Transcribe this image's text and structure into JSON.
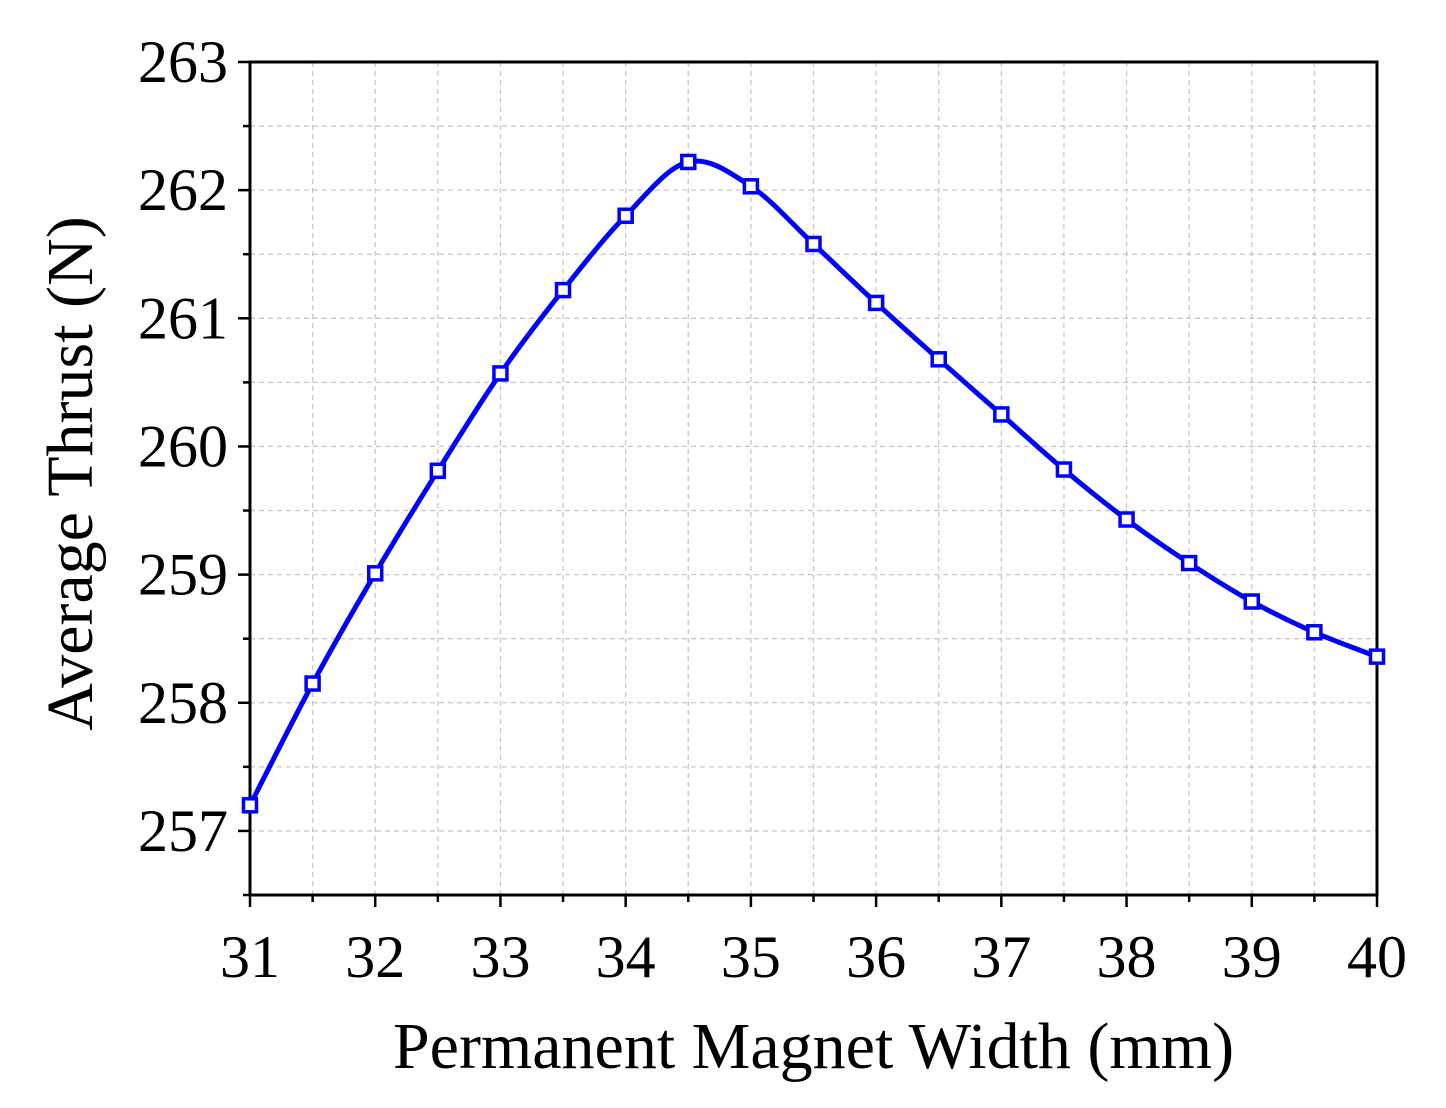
{
  "chart_data": {
    "type": "line",
    "title": "",
    "xlabel": "Permanent Magnet Width (mm)",
    "ylabel": "Average Thrust (N)",
    "xlim": [
      31,
      40
    ],
    "ylim": [
      256.5,
      263
    ],
    "x_ticks": [
      31,
      32,
      33,
      34,
      35,
      36,
      37,
      38,
      39,
      40
    ],
    "y_ticks": [
      257,
      258,
      259,
      260,
      261,
      262,
      263
    ],
    "grid": true,
    "legend": "none",
    "series": [
      {
        "color": "#0000ff",
        "marker": "open-square",
        "x": [
          31,
          31.5,
          32,
          32.5,
          33,
          33.5,
          34,
          34.5,
          35,
          35.5,
          36,
          36.5,
          37,
          37.5,
          38,
          38.5,
          39,
          39.5,
          40
        ],
        "y": [
          257.2,
          258.15,
          259.01,
          259.81,
          260.57,
          261.22,
          261.8,
          262.22,
          262.03,
          261.58,
          261.12,
          260.68,
          260.25,
          259.82,
          259.43,
          259.09,
          258.79,
          258.55,
          258.36
        ]
      }
    ]
  }
}
